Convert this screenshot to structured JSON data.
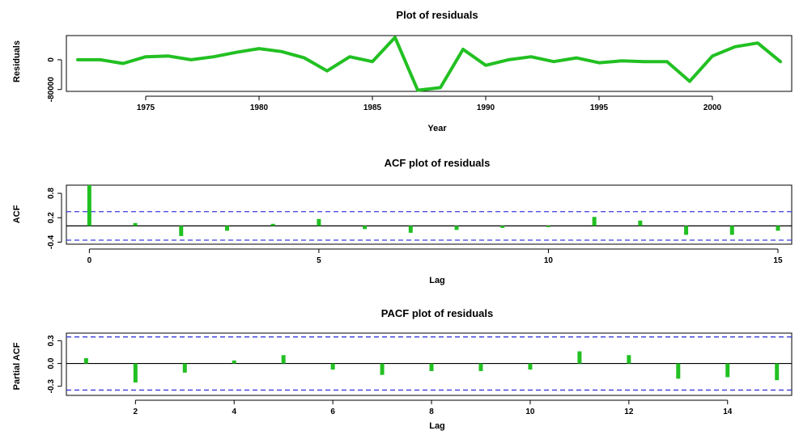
{
  "chart_data": [
    {
      "type": "line",
      "title": "Plot of residuals",
      "xlabel": "Year",
      "ylabel": "Residuals",
      "xlim": [
        1971.5,
        2003.5
      ],
      "ylim": [
        -85000,
        65000
      ],
      "xticks": [
        1975,
        1980,
        1985,
        1990,
        1995,
        2000
      ],
      "yticks": [
        -80000,
        0
      ],
      "ytick_labels": [
        "-80000",
        "0"
      ],
      "color": "#22c022",
      "series": [
        {
          "x": [
            1972,
            1973,
            1974,
            1975,
            1976,
            1977,
            1978,
            1979,
            1980,
            1981,
            1982,
            1983,
            1984,
            1985,
            1986,
            1987,
            1988,
            1989,
            1990,
            1991,
            1992,
            1993,
            1994,
            1995,
            1996,
            1997,
            1998,
            1999,
            2000,
            2001,
            2002,
            2003
          ],
          "y": [
            0,
            0,
            -10000,
            8000,
            10000,
            0,
            8000,
            20000,
            30000,
            22000,
            5000,
            -30000,
            8000,
            -5000,
            60000,
            -82000,
            -75000,
            28000,
            -15000,
            0,
            8000,
            -5000,
            5000,
            -8000,
            -3000,
            -5000,
            -5000,
            -58000,
            10000,
            35000,
            45000,
            -5000
          ]
        }
      ]
    },
    {
      "type": "bar",
      "title": "ACF plot of residuals",
      "xlabel": "Lag",
      "ylabel": "ACF",
      "xlim": [
        -0.5,
        15.3
      ],
      "ylim": [
        -0.45,
        1.0
      ],
      "xticks": [
        0,
        5,
        10,
        15
      ],
      "yticks": [
        -0.4,
        0.2,
        0.8
      ],
      "ytick_labels": [
        "-0.4",
        "0.2",
        "0.8"
      ],
      "confidence_band": 0.35,
      "color": "#22c022",
      "lags": [
        0,
        1,
        2,
        3,
        4,
        5,
        6,
        7,
        8,
        9,
        10,
        11,
        12,
        13,
        14,
        15
      ],
      "values": [
        1.0,
        0.07,
        -0.25,
        -0.12,
        0.05,
        0.17,
        -0.08,
        -0.17,
        -0.1,
        -0.05,
        -0.03,
        0.22,
        0.13,
        -0.22,
        -0.22,
        -0.12
      ]
    },
    {
      "type": "bar",
      "title": "PACF plot of residuals",
      "xlabel": "Lag",
      "ylabel": "Partial ACF",
      "xlim": [
        0.6,
        15.3
      ],
      "ylim": [
        -0.42,
        0.4
      ],
      "xticks": [
        2,
        4,
        6,
        8,
        10,
        12,
        14
      ],
      "yticks": [
        -0.3,
        0.0,
        0.3
      ],
      "ytick_labels": [
        "-0.3",
        "0.0",
        "0.3"
      ],
      "confidence_band": 0.35,
      "color": "#22c022",
      "lags": [
        1,
        2,
        3,
        4,
        5,
        6,
        7,
        8,
        9,
        10,
        11,
        12,
        13,
        14,
        15
      ],
      "values": [
        0.07,
        -0.25,
        -0.12,
        0.04,
        0.11,
        -0.08,
        -0.15,
        -0.1,
        -0.1,
        -0.08,
        0.16,
        0.11,
        -0.2,
        -0.18,
        -0.22
      ]
    }
  ]
}
